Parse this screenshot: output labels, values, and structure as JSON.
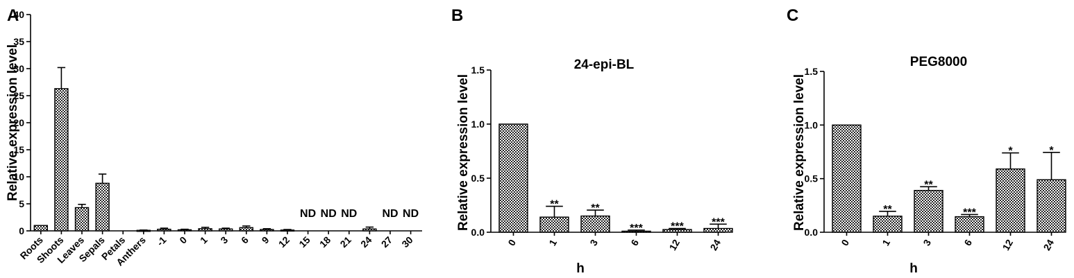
{
  "chart_data": [
    {
      "panel": "A",
      "type": "bar",
      "title": "",
      "xlabel": "",
      "ylabel": "Relative expression level",
      "ylim": [
        0,
        40
      ],
      "yticks": [
        "0",
        "5",
        "10",
        "15",
        "20",
        "25",
        "30",
        "35",
        "40"
      ],
      "categories": [
        "Roots",
        "Shoots",
        "Leaves",
        "Sepals",
        "Petals",
        "Anthers",
        "-1",
        "0",
        "1",
        "3",
        "6",
        "9",
        "12",
        "15",
        "18",
        "21",
        "24",
        "27",
        "30"
      ],
      "values": [
        1.0,
        26.3,
        4.3,
        8.8,
        0,
        0.1,
        0.3,
        0.2,
        0.4,
        0.35,
        0.6,
        0.25,
        0.15,
        null,
        null,
        null,
        0.35,
        null,
        null
      ],
      "errors": [
        0,
        3.9,
        0.6,
        1.7,
        0,
        0.05,
        0.2,
        0.1,
        0.25,
        0.15,
        0.3,
        0.15,
        0.1,
        null,
        null,
        null,
        0.35,
        null,
        null
      ],
      "annotations": [
        "",
        "",
        "",
        "",
        "",
        "",
        "",
        "",
        "",
        "",
        "",
        "",
        "",
        "ND",
        "ND",
        "ND",
        "",
        "ND",
        "ND"
      ],
      "grid": false
    },
    {
      "panel": "B",
      "type": "bar",
      "title": "24-epi-BL",
      "xlabel": "h",
      "ylabel": "Relative expression level",
      "ylim": [
        0,
        1.5
      ],
      "yticks": [
        "0.0",
        "0.5",
        "1.0",
        "1.5"
      ],
      "categories": [
        "0",
        "1",
        "3",
        "6",
        "12",
        "24"
      ],
      "values": [
        1.0,
        0.14,
        0.15,
        0.01,
        0.025,
        0.035
      ],
      "errors": [
        0,
        0.1,
        0.055,
        0.01,
        0.01,
        0.04
      ],
      "annotations": [
        "",
        "**",
        "**",
        "***",
        "***",
        "***"
      ],
      "grid": false
    },
    {
      "panel": "C",
      "type": "bar",
      "title": "PEG8000",
      "xlabel": "h",
      "ylabel": "Relative expression level",
      "ylim": [
        0,
        1.5
      ],
      "yticks": [
        "0.0",
        "0.5",
        "1.0",
        "1.5"
      ],
      "categories": [
        "0",
        "1",
        "3",
        "6",
        "12",
        "24"
      ],
      "values": [
        1.0,
        0.15,
        0.39,
        0.145,
        0.59,
        0.49
      ],
      "errors": [
        0,
        0.045,
        0.035,
        0.02,
        0.15,
        0.255
      ],
      "annotations": [
        "",
        "**",
        "**",
        "***",
        "*",
        "*"
      ],
      "grid": false
    }
  ]
}
